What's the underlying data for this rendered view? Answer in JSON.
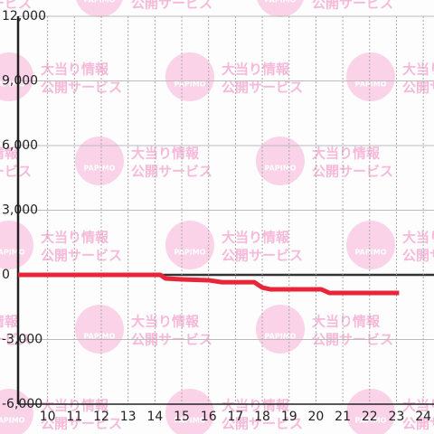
{
  "chart_data": {
    "type": "line",
    "watermark": {
      "logo": "PAPIMO",
      "line1": "大当り情報",
      "line2": "公開サービス"
    },
    "x": [
      8.9,
      14.2,
      14.4,
      15.0,
      16.0,
      16.5,
      17.7,
      18.0,
      18.3,
      20.2,
      20.5,
      23.1
    ],
    "series": [
      {
        "color": "#e8263a",
        "values": [
          0,
          0,
          -170,
          -210,
          -250,
          -340,
          -340,
          -590,
          -670,
          -670,
          -840,
          -840
        ]
      }
    ],
    "xlim": [
      8.9,
      24.4
    ],
    "xticks": [
      10,
      11,
      12,
      13,
      14,
      15,
      16,
      17,
      18,
      19,
      20,
      21,
      22,
      23,
      24
    ],
    "ylim": [
      -6000,
      12000
    ],
    "yticks": [
      {
        "value": -6000,
        "label": "-6,000"
      },
      {
        "value": -3000,
        "label": "-3,000"
      },
      0,
      {
        "value": 3000,
        "label": "3,000"
      },
      {
        "value": 6000,
        "label": "6,000"
      },
      {
        "value": 9000,
        "label": "9,000"
      },
      {
        "value": 12000,
        "label": "12,000"
      }
    ],
    "grid": true
  }
}
